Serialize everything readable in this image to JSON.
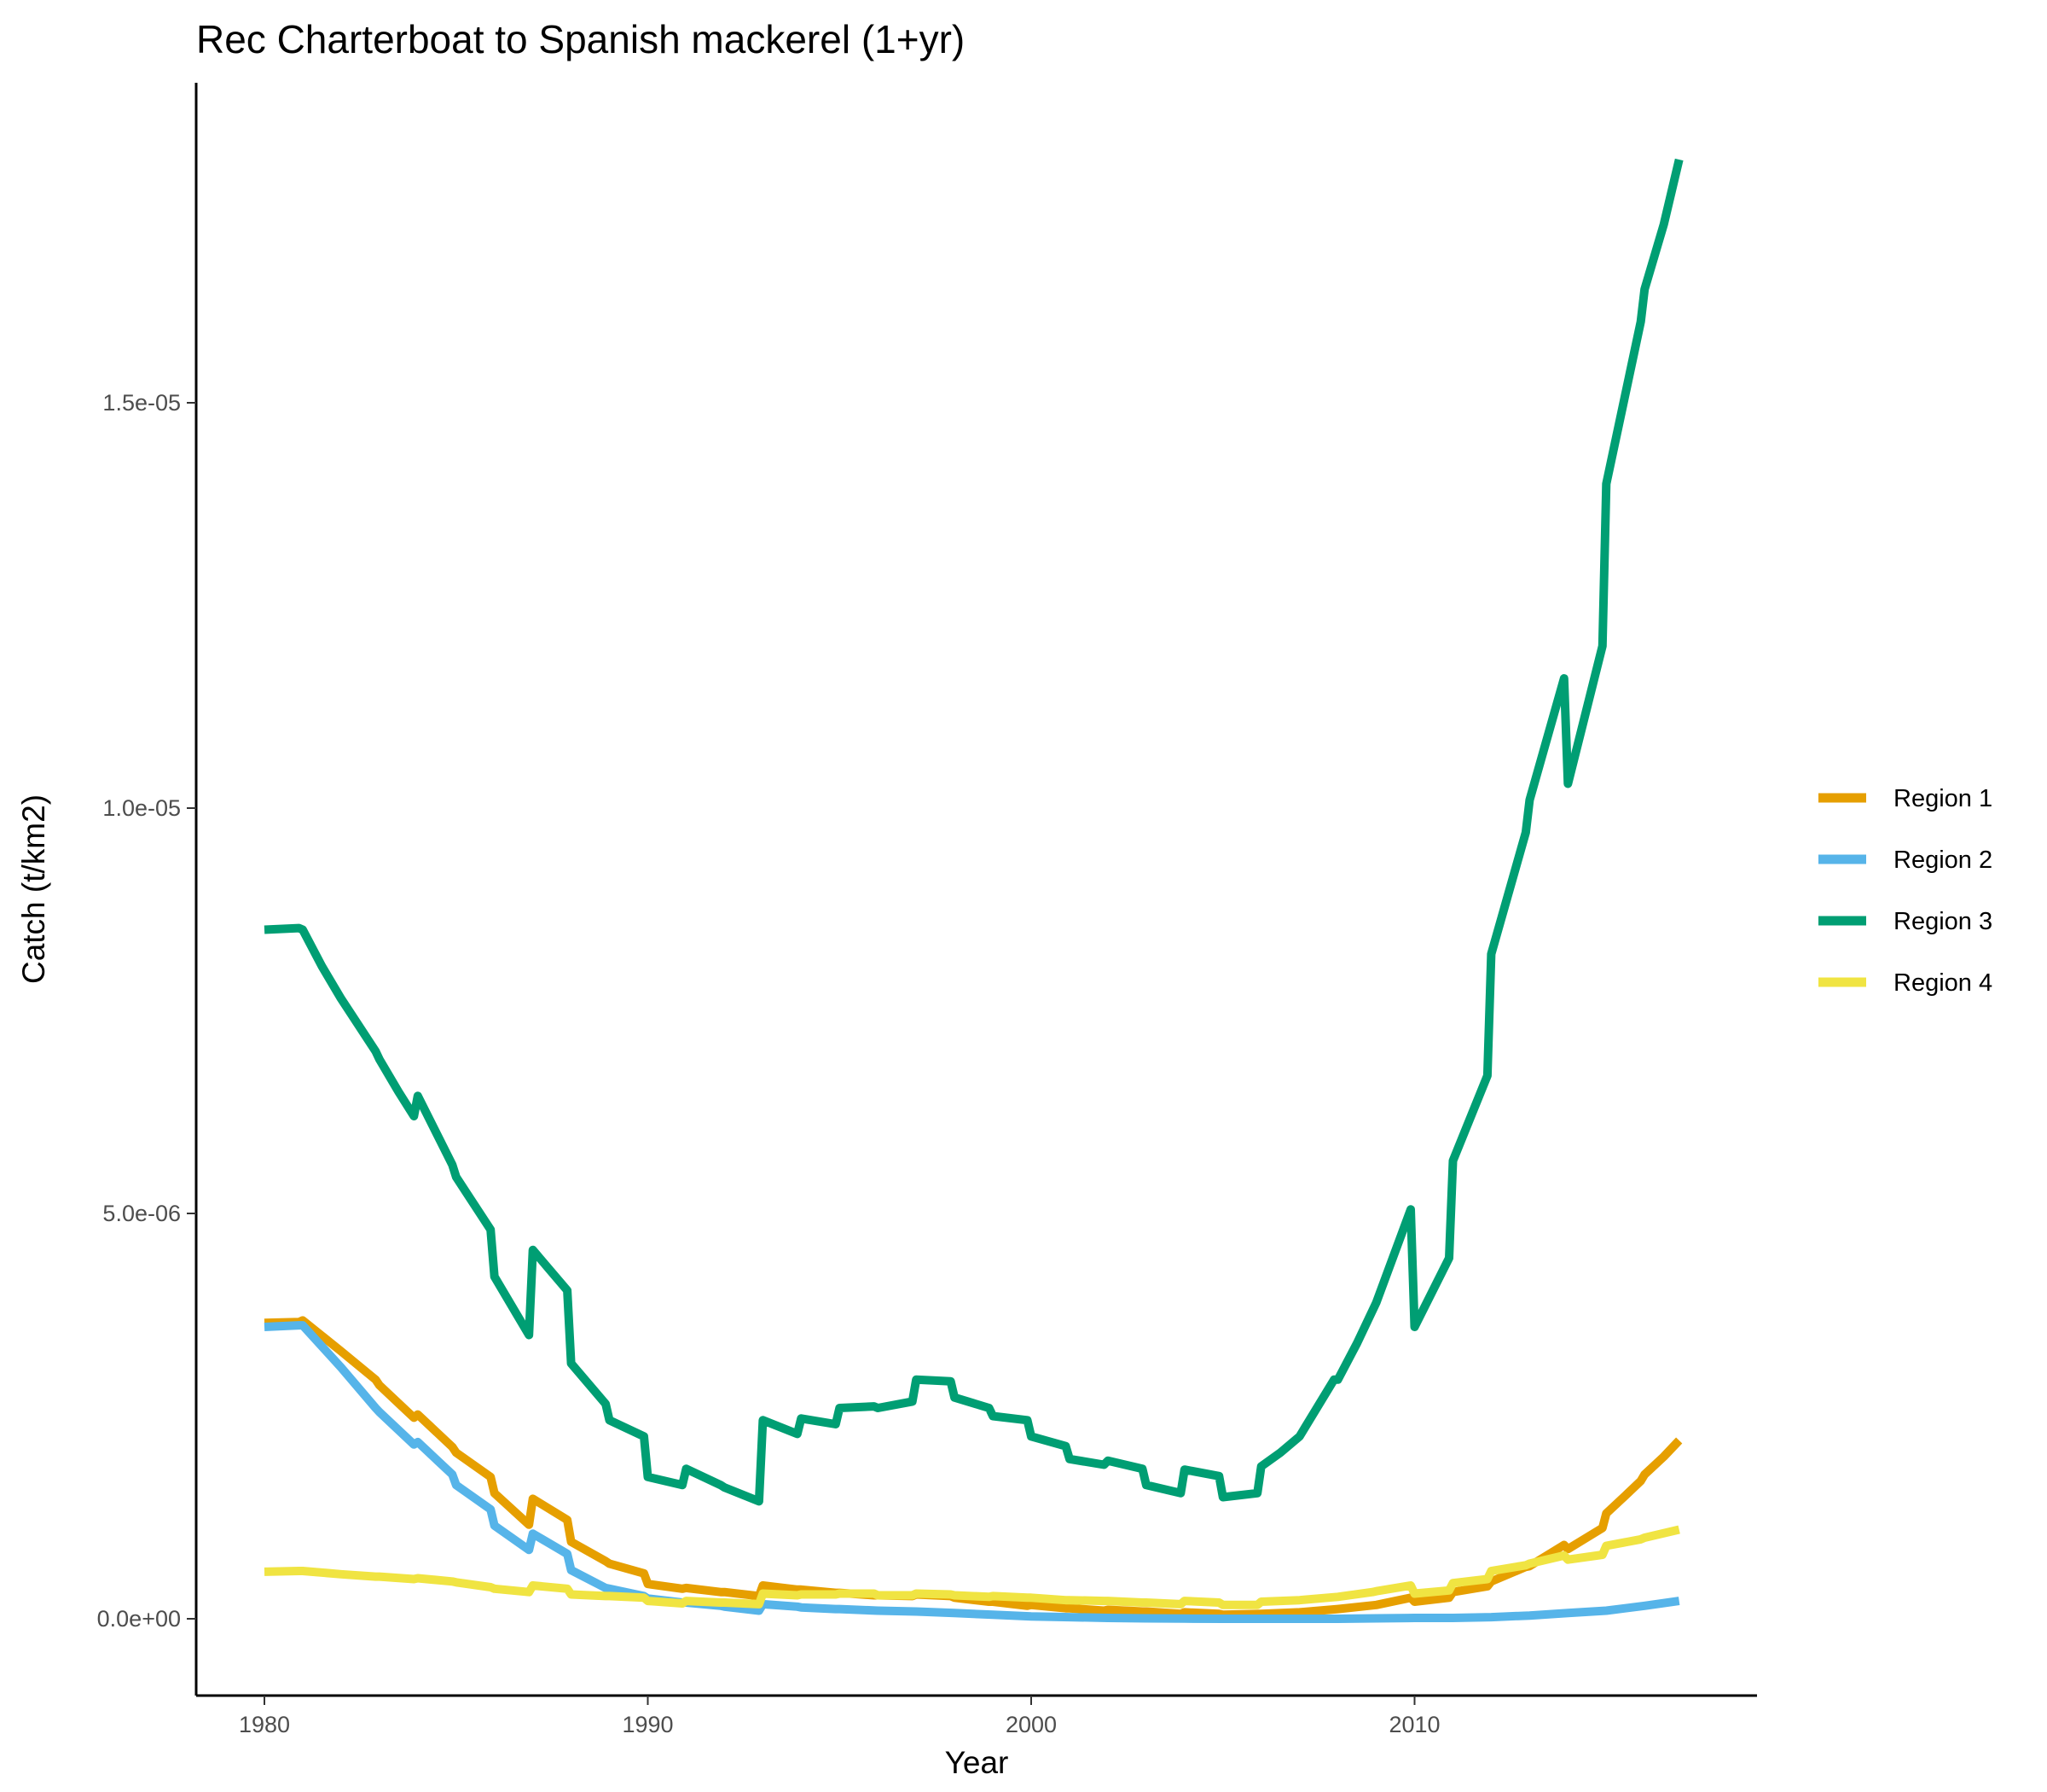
{
  "chart_data": {
    "type": "line",
    "title": "Rec Charterboat to Spanish mackerel (1+yr)",
    "xlabel": "Year",
    "ylabel": "Catch (t/km2)",
    "xlim": [
      1978.3,
      2018.9
    ],
    "ylim": [
      -9e-07,
      1.9e-05
    ],
    "x_ticks": [
      1980,
      1990,
      2000,
      2010
    ],
    "x_tick_labels": [
      "1980",
      "1990",
      "2000",
      "2010"
    ],
    "y_ticks": [
      0,
      5e-06,
      1e-05,
      1.5e-05
    ],
    "y_tick_labels": [
      "0.0e+00",
      "5.0e-06",
      "1.0e-05",
      "1.5e-05"
    ],
    "grid": false,
    "legend_position": "right",
    "series": [
      {
        "name": "Region 1",
        "color": "#E69F00",
        "points": [
          [
            1980,
            3.65e-06
          ],
          [
            1980.9,
            3.66e-06
          ],
          [
            1981,
            3.68e-06
          ],
          [
            1982,
            3.3e-06
          ],
          [
            1982.9,
            2.95e-06
          ],
          [
            1983,
            2.88e-06
          ],
          [
            1983.9,
            2.48e-06
          ],
          [
            1984,
            2.52e-06
          ],
          [
            1984.9,
            2.12e-06
          ],
          [
            1985,
            2.05e-06
          ],
          [
            1985.9,
            1.75e-06
          ],
          [
            1986,
            1.55e-06
          ],
          [
            1986.9,
            1.16e-06
          ],
          [
            1987,
            1.48e-06
          ],
          [
            1987.9,
            1.22e-06
          ],
          [
            1988,
            9.5e-07
          ],
          [
            1988.9,
            7.1e-07
          ],
          [
            1989,
            6.8e-07
          ],
          [
            1989.9,
            5.6e-07
          ],
          [
            1990,
            4.3e-07
          ],
          [
            1990.9,
            3.7e-07
          ],
          [
            1991,
            3.8e-07
          ],
          [
            1991.9,
            3.3e-07
          ],
          [
            1992,
            3.3e-07
          ],
          [
            1992.9,
            2.8e-07
          ],
          [
            1993,
            4.1e-07
          ],
          [
            1993.9,
            3.6e-07
          ],
          [
            1994,
            3.6e-07
          ],
          [
            1994.9,
            3.2e-07
          ],
          [
            1995,
            3.2e-07
          ],
          [
            1995.9,
            2.9e-07
          ],
          [
            1996,
            2.9e-07
          ],
          [
            1996.9,
            2.8e-07
          ],
          [
            1997,
            3e-07
          ],
          [
            1997.9,
            2.8e-07
          ],
          [
            1998,
            2.6e-07
          ],
          [
            1998.9,
            2.1e-07
          ],
          [
            1999,
            2.1e-07
          ],
          [
            1999.9,
            1.6e-07
          ],
          [
            2000,
            1.7e-07
          ],
          [
            2000.9,
            1.3e-07
          ],
          [
            2001,
            1.3e-07
          ],
          [
            2001.9,
            1e-07
          ],
          [
            2002,
            1.1e-07
          ],
          [
            2002.9,
            9e-08
          ],
          [
            2003,
            9e-08
          ],
          [
            2003.9,
            6e-08
          ],
          [
            2004,
            8e-08
          ],
          [
            2004.9,
            6e-08
          ],
          [
            2005,
            5e-08
          ],
          [
            2006,
            6e-08
          ],
          [
            2007,
            8e-08
          ],
          [
            2008,
            1.2e-07
          ],
          [
            2009,
            1.7e-07
          ],
          [
            2009.9,
            2.6e-07
          ],
          [
            2010,
            2.1e-07
          ],
          [
            2010.9,
            2.6e-07
          ],
          [
            2011,
            3.3e-07
          ],
          [
            2011.9,
            4e-07
          ],
          [
            2012,
            4.6e-07
          ],
          [
            2012.9,
            6.4e-07
          ],
          [
            2013,
            6.5e-07
          ],
          [
            2013.9,
            9.1e-07
          ],
          [
            2014,
            8.6e-07
          ],
          [
            2014.9,
            1.12e-06
          ],
          [
            2015,
            1.3e-06
          ],
          [
            2015.5,
            1.52e-06
          ],
          [
            2015.9,
            1.7e-06
          ],
          [
            2016,
            1.78e-06
          ],
          [
            2016.5,
            2e-06
          ],
          [
            2016.9,
            2.2e-06
          ]
        ]
      },
      {
        "name": "Region 2",
        "color": "#56B4E9",
        "points": [
          [
            1980,
            3.6e-06
          ],
          [
            1980.9,
            3.62e-06
          ],
          [
            1981,
            3.62e-06
          ],
          [
            1982,
            3.1e-06
          ],
          [
            1982.9,
            2.6e-06
          ],
          [
            1983,
            2.55e-06
          ],
          [
            1983.9,
            2.15e-06
          ],
          [
            1984,
            2.18e-06
          ],
          [
            1984.9,
            1.78e-06
          ],
          [
            1985,
            1.65e-06
          ],
          [
            1985.9,
            1.35e-06
          ],
          [
            1986,
            1.15e-06
          ],
          [
            1986.9,
            8.5e-07
          ],
          [
            1987,
            1.05e-06
          ],
          [
            1987.9,
            8e-07
          ],
          [
            1988,
            6e-07
          ],
          [
            1988.9,
            3.8e-07
          ],
          [
            1989,
            3.7e-07
          ],
          [
            1989.9,
            2.8e-07
          ],
          [
            1990,
            2.5e-07
          ],
          [
            1990.9,
            2e-07
          ],
          [
            1991,
            2e-07
          ],
          [
            1991.9,
            1.6e-07
          ],
          [
            1992,
            1.5e-07
          ],
          [
            1992.9,
            1e-07
          ],
          [
            1993,
            1.8e-07
          ],
          [
            1993.9,
            1.5e-07
          ],
          [
            1994,
            1.4e-07
          ],
          [
            1994.9,
            1.2e-07
          ],
          [
            1995,
            1.2e-07
          ],
          [
            1996,
            1e-07
          ],
          [
            1997,
            9e-08
          ],
          [
            1998,
            7e-08
          ],
          [
            1999,
            5e-08
          ],
          [
            2000,
            3e-08
          ],
          [
            2001,
            2e-08
          ],
          [
            2002,
            1e-08
          ],
          [
            2003,
            5e-09
          ],
          [
            2004,
            2e-09
          ],
          [
            2005,
            0
          ],
          [
            2006,
            0
          ],
          [
            2007,
            0
          ],
          [
            2008,
            0
          ],
          [
            2009,
            5e-09
          ],
          [
            2010,
            1e-08
          ],
          [
            2011,
            1e-08
          ],
          [
            2012,
            2e-08
          ],
          [
            2013,
            4e-08
          ],
          [
            2014,
            7e-08
          ],
          [
            2015,
            1e-07
          ],
          [
            2016,
            1.6e-07
          ],
          [
            2016.9,
            2.2e-07
          ]
        ]
      },
      {
        "name": "Region 3",
        "color": "#009E73",
        "points": [
          [
            1980,
            8.5e-06
          ],
          [
            1980.9,
            8.52e-06
          ],
          [
            1981,
            8.5e-06
          ],
          [
            1981.5,
            8.05e-06
          ],
          [
            1982,
            7.65e-06
          ],
          [
            1982.9,
            7e-06
          ],
          [
            1983,
            6.9e-06
          ],
          [
            1983.5,
            6.5e-06
          ],
          [
            1983.9,
            6.2e-06
          ],
          [
            1984,
            6.45e-06
          ],
          [
            1984.9,
            5.6e-06
          ],
          [
            1985,
            5.45e-06
          ],
          [
            1985.9,
            4.8e-06
          ],
          [
            1986,
            4.22e-06
          ],
          [
            1986.9,
            3.5e-06
          ],
          [
            1987,
            4.55e-06
          ],
          [
            1987.9,
            4.05e-06
          ],
          [
            1988,
            3.15e-06
          ],
          [
            1988.9,
            2.65e-06
          ],
          [
            1989,
            2.45e-06
          ],
          [
            1989.9,
            2.25e-06
          ],
          [
            1990,
            1.75e-06
          ],
          [
            1990.9,
            1.65e-06
          ],
          [
            1991,
            1.85e-06
          ],
          [
            1991.9,
            1.65e-06
          ],
          [
            1992,
            1.62e-06
          ],
          [
            1992.9,
            1.45e-06
          ],
          [
            1993,
            2.45e-06
          ],
          [
            1993.9,
            2.28e-06
          ],
          [
            1994,
            2.47e-06
          ],
          [
            1994.9,
            2.4e-06
          ],
          [
            1995,
            2.6e-06
          ],
          [
            1995.9,
            2.62e-06
          ],
          [
            1996,
            2.6e-06
          ],
          [
            1996.9,
            2.68e-06
          ],
          [
            1997,
            2.95e-06
          ],
          [
            1997.9,
            2.93e-06
          ],
          [
            1998,
            2.73e-06
          ],
          [
            1998.9,
            2.6e-06
          ],
          [
            1999,
            2.5e-06
          ],
          [
            1999.9,
            2.45e-06
          ],
          [
            2000,
            2.25e-06
          ],
          [
            2000.9,
            2.13e-06
          ],
          [
            2001,
            1.97e-06
          ],
          [
            2001.9,
            1.9e-06
          ],
          [
            2002,
            1.95e-06
          ],
          [
            2002.9,
            1.85e-06
          ],
          [
            2003,
            1.65e-06
          ],
          [
            2003.9,
            1.55e-06
          ],
          [
            2004,
            1.84e-06
          ],
          [
            2004.9,
            1.76e-06
          ],
          [
            2005,
            1.5e-06
          ],
          [
            2005.9,
            1.55e-06
          ],
          [
            2006,
            1.88e-06
          ],
          [
            2006.5,
            2.05e-06
          ],
          [
            2007,
            2.25e-06
          ],
          [
            2007.9,
            2.95e-06
          ],
          [
            2008,
            2.95e-06
          ],
          [
            2008.5,
            3.4e-06
          ],
          [
            2009,
            3.9e-06
          ],
          [
            2009.9,
            5.05e-06
          ],
          [
            2010,
            3.6e-06
          ],
          [
            2010.9,
            4.45e-06
          ],
          [
            2011,
            5.65e-06
          ],
          [
            2011.9,
            6.7e-06
          ],
          [
            2012,
            8.2e-06
          ],
          [
            2012.9,
            9.7e-06
          ],
          [
            2013,
            1.01e-05
          ],
          [
            2013.9,
            1.16e-05
          ],
          [
            2014,
            1.03e-05
          ],
          [
            2014.9,
            1.2e-05
          ],
          [
            2015,
            1.4e-05
          ],
          [
            2015.9,
            1.6e-05
          ],
          [
            2016,
            1.64e-05
          ],
          [
            2016.5,
            1.72e-05
          ],
          [
            2016.9,
            1.8e-05
          ]
        ]
      },
      {
        "name": "Region 4",
        "color": "#F0E442",
        "points": [
          [
            1980,
            5.8e-07
          ],
          [
            1980.9,
            5.9e-07
          ],
          [
            1981,
            5.9e-07
          ],
          [
            1982,
            5.5e-07
          ],
          [
            1982.9,
            5.2e-07
          ],
          [
            1983,
            5.2e-07
          ],
          [
            1983.9,
            4.9e-07
          ],
          [
            1984,
            5e-07
          ],
          [
            1984.9,
            4.6e-07
          ],
          [
            1985,
            4.5e-07
          ],
          [
            1985.9,
            3.9e-07
          ],
          [
            1986,
            3.7e-07
          ],
          [
            1986.9,
            3.3e-07
          ],
          [
            1987,
            4.1e-07
          ],
          [
            1987.9,
            3.7e-07
          ],
          [
            1988,
            3e-07
          ],
          [
            1988.9,
            2.8e-07
          ],
          [
            1989,
            2.8e-07
          ],
          [
            1989.9,
            2.6e-07
          ],
          [
            1990,
            2.2e-07
          ],
          [
            1990.9,
            1.9e-07
          ],
          [
            1991,
            2.2e-07
          ],
          [
            1991.9,
            2e-07
          ],
          [
            1992,
            2e-07
          ],
          [
            1992.9,
            1.8e-07
          ],
          [
            1993,
            3.1e-07
          ],
          [
            1993.9,
            2.9e-07
          ],
          [
            1994,
            3e-07
          ],
          [
            1994.9,
            3e-07
          ],
          [
            1995,
            3.1e-07
          ],
          [
            1995.9,
            3.1e-07
          ],
          [
            1996,
            2.9e-07
          ],
          [
            1996.9,
            2.9e-07
          ],
          [
            1997,
            3.1e-07
          ],
          [
            1997.9,
            3e-07
          ],
          [
            1998,
            2.9e-07
          ],
          [
            1998.9,
            2.7e-07
          ],
          [
            1999,
            2.8e-07
          ],
          [
            1999.9,
            2.6e-07
          ],
          [
            2000,
            2.6e-07
          ],
          [
            2000.9,
            2.3e-07
          ],
          [
            2001,
            2.3e-07
          ],
          [
            2001.9,
            2.2e-07
          ],
          [
            2002,
            2.2e-07
          ],
          [
            2002.9,
            2e-07
          ],
          [
            2003,
            2e-07
          ],
          [
            2003.9,
            1.8e-07
          ],
          [
            2004,
            2.2e-07
          ],
          [
            2004.9,
            2e-07
          ],
          [
            2005,
            1.7e-07
          ],
          [
            2005.9,
            1.7e-07
          ],
          [
            2006,
            2.1e-07
          ],
          [
            2007,
            2.3e-07
          ],
          [
            2008,
            2.7e-07
          ],
          [
            2008.9,
            3.3e-07
          ],
          [
            2009,
            3.4e-07
          ],
          [
            2009.9,
            4.1e-07
          ],
          [
            2010,
            3.1e-07
          ],
          [
            2010.9,
            3.5e-07
          ],
          [
            2011,
            4.4e-07
          ],
          [
            2011.9,
            4.9e-07
          ],
          [
            2012,
            5.9e-07
          ],
          [
            2012.9,
            6.6e-07
          ],
          [
            2013,
            6.8e-07
          ],
          [
            2013.9,
            7.8e-07
          ],
          [
            2014,
            7.3e-07
          ],
          [
            2014.9,
            7.9e-07
          ],
          [
            2015,
            9e-07
          ],
          [
            2015.9,
            9.8e-07
          ],
          [
            2016,
            1e-06
          ],
          [
            2016.9,
            1.1e-06
          ]
        ]
      }
    ]
  }
}
